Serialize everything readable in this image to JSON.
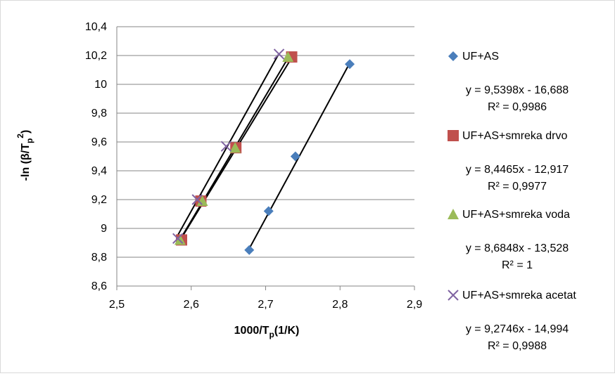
{
  "chart_data": {
    "type": "scatter",
    "xlabel": "1000/T_p(1/K)",
    "ylabel": "-ln (β/T_p²)",
    "xlim": [
      2.5,
      2.9
    ],
    "ylim": [
      8.6,
      10.4
    ],
    "x_ticks": [
      "2,5",
      "2,6",
      "2,7",
      "2,8",
      "2,9"
    ],
    "y_ticks": [
      "8,6",
      "8,8",
      "9",
      "9,2",
      "9,4",
      "9,6",
      "9,8",
      "10",
      "10,2",
      "10,4"
    ],
    "grid": "horizontal",
    "legend_position": "right",
    "series": [
      {
        "name": "UF+AS",
        "marker": "diamond",
        "color": "#4a7ebb",
        "x": [
          2.678,
          2.704,
          2.74,
          2.813
        ],
        "y": [
          8.85,
          9.12,
          9.5,
          10.14
        ],
        "trendline": {
          "slope": 9.5398,
          "intercept": -16.688,
          "equation": "y = 9,5398x - 16,688",
          "r2": "R² = 0,9986"
        }
      },
      {
        "name": "UF+AS+smreka drvo",
        "marker": "square",
        "color": "#c0504d",
        "x": [
          2.587,
          2.613,
          2.66,
          2.735
        ],
        "y": [
          8.92,
          9.19,
          9.56,
          10.19
        ],
        "trendline": {
          "slope": 8.4465,
          "intercept": -12.917,
          "equation": "y = 8,4465x - 12,917",
          "r2": "R² = 0,9977"
        }
      },
      {
        "name": "UF+AS+smreka voda",
        "marker": "triangle",
        "color": "#9bbb59",
        "x": [
          2.585,
          2.615,
          2.659,
          2.73
        ],
        "y": [
          8.92,
          9.19,
          9.56,
          10.19
        ],
        "trendline": {
          "slope": 8.6848,
          "intercept": -13.528,
          "equation": "y = 8,6848x - 13,528",
          "r2": "R² = 1"
        }
      },
      {
        "name": "UF+AS+smreka acetat",
        "marker": "x",
        "color": "#8064a2",
        "x": [
          2.582,
          2.608,
          2.647,
          2.718
        ],
        "y": [
          8.93,
          9.2,
          9.57,
          10.21
        ],
        "trendline": {
          "slope": 9.2746,
          "intercept": -14.994,
          "equation": "y = 9,2746x - 14,994",
          "r2": "R² = 0,9988"
        }
      }
    ]
  }
}
